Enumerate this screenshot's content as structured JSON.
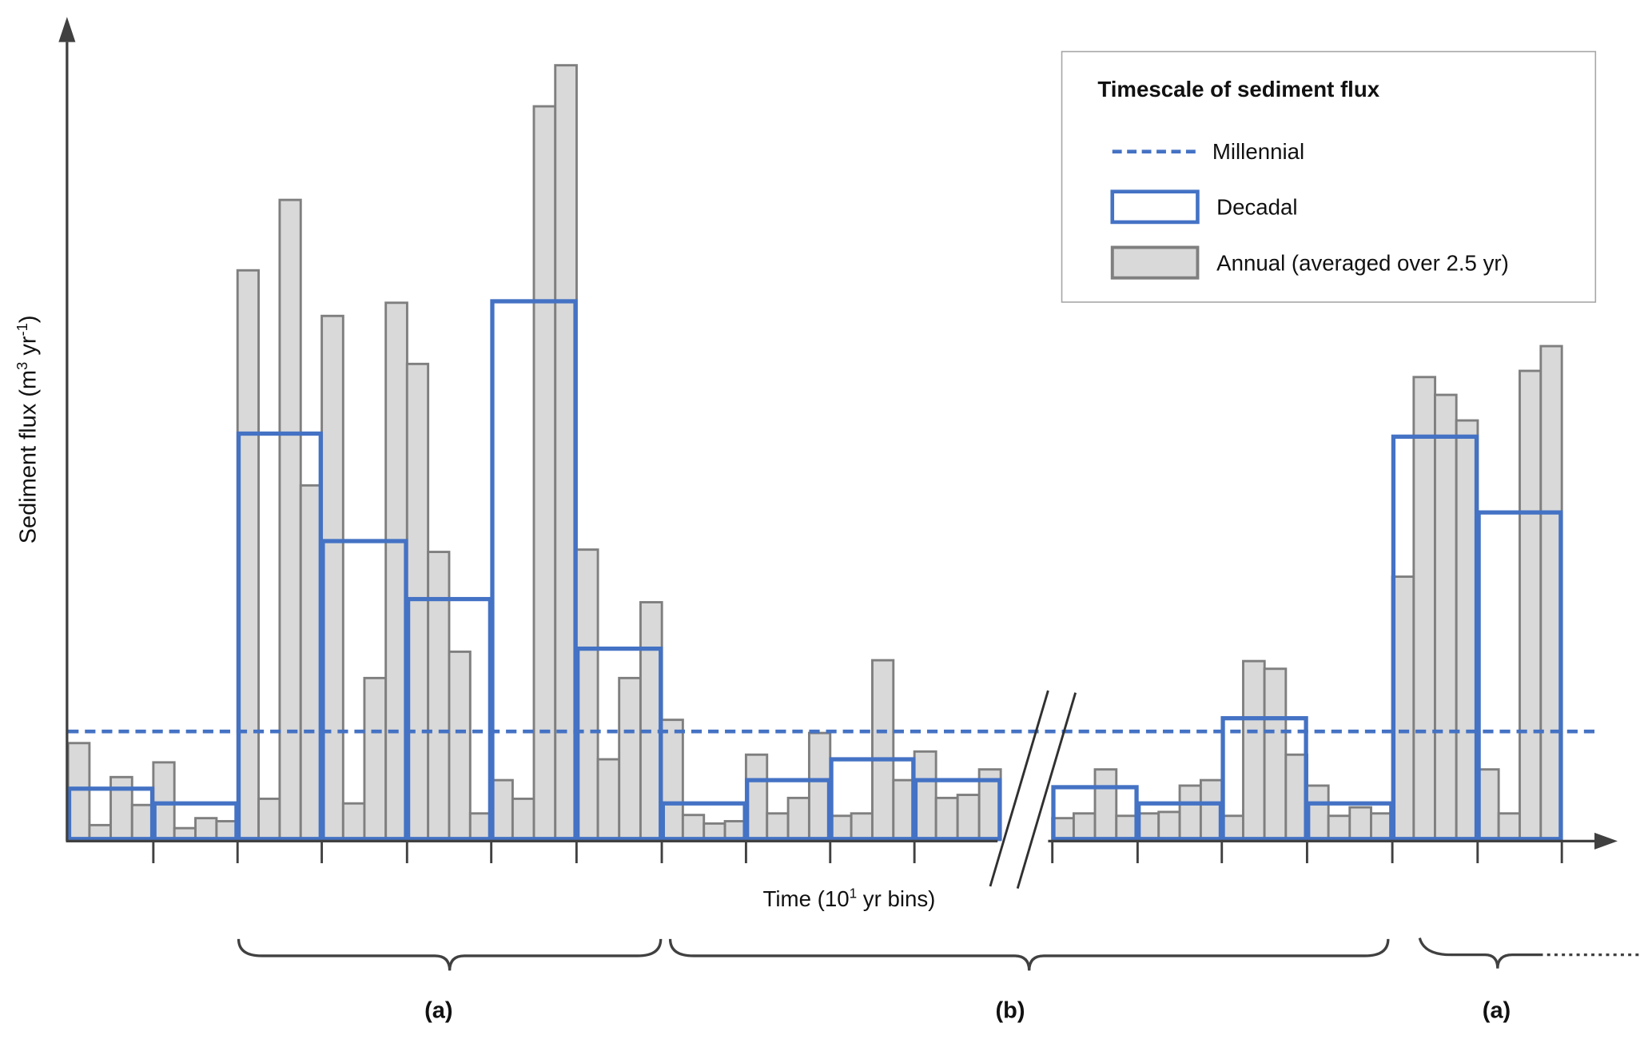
{
  "chart_data": {
    "type": "bar",
    "title": "",
    "xlabel": "Time (10¹ yr bins)",
    "xlabel_parts": {
      "main": "Time (10",
      "sup": "1",
      "rest": " yr bins)"
    },
    "ylabel": "Sediment flux (m³ yr⁻¹)",
    "ylabel_parts": {
      "pre": "Sediment flux (m",
      "sup1": "3",
      "mid": " yr",
      "sup2": "-1",
      "post": ")"
    },
    "units_note": "relative (no tick labels shown); max annual bar = 100",
    "ylim": [
      0,
      105
    ],
    "grid": false,
    "axis_break_after_decade": 11,
    "legend": {
      "placement": "top-right",
      "title": "Timescale of sediment flux",
      "entries": [
        {
          "key": "millennial",
          "label": "Millennial",
          "style": "dashed-line"
        },
        {
          "key": "decadal",
          "label": "Decadal",
          "style": "outlined-box"
        },
        {
          "key": "annual",
          "label": "Annual (averaged over 2.5 yr)",
          "style": "filled-box"
        }
      ]
    },
    "colors": {
      "millennial": "#4472C4",
      "decadal": "#4472C4",
      "annual_fill": "#D9D9D9",
      "annual_edge": "#7F7F7F",
      "axis": "#404040"
    },
    "series": [
      {
        "name": "Annual (averaged over 2.5 yr)",
        "bars_per_decade": 4,
        "values": [
          [
            12.4,
            1.8,
            8.0,
            4.4
          ],
          [
            9.9,
            1.4,
            2.7,
            2.3
          ],
          [
            73.5,
            5.2,
            82.6,
            45.7
          ],
          [
            67.6,
            4.6,
            20.8,
            69.3
          ],
          [
            61.4,
            37.1,
            24.2,
            3.3
          ],
          [
            7.6,
            5.2,
            94.7,
            100.0
          ],
          [
            37.4,
            10.3,
            20.8,
            30.6
          ],
          [
            15.4,
            3.1,
            2.0,
            2.3
          ],
          [
            10.9,
            3.3,
            5.3,
            13.7
          ],
          [
            3.0,
            3.3,
            23.1,
            7.6
          ],
          [
            11.3,
            5.3,
            5.7,
            9.0
          ],
          [
            2.7,
            3.3,
            9.0,
            3.0
          ],
          [
            3.3,
            3.5,
            6.9,
            7.6
          ],
          [
            3.0,
            23.0,
            22.0,
            10.9
          ],
          [
            6.9,
            3.0,
            4.1,
            3.3
          ],
          [
            33.9,
            59.7,
            57.4,
            54.1
          ],
          [
            9.0,
            3.3,
            60.5,
            63.7
          ]
        ]
      },
      {
        "name": "Decadal",
        "values": [
          6.5,
          4.6,
          52.4,
          38.5,
          31.0,
          69.5,
          24.6,
          4.6,
          7.6,
          10.3,
          7.6,
          6.7,
          4.6,
          15.6,
          4.6,
          52.0,
          42.2
        ]
      },
      {
        "name": "Millennial",
        "value": 13.9
      }
    ],
    "annotations": [
      {
        "label": "(a)",
        "from_decade": 3,
        "to_decade": 7,
        "bracket": "brace"
      },
      {
        "label": "(b)",
        "from_decade": 8,
        "to_decade": 15,
        "bracket": "brace"
      },
      {
        "label": "(a)",
        "from_decade": 16,
        "to_decade": 17,
        "bracket": "brace",
        "continues": true
      }
    ]
  }
}
